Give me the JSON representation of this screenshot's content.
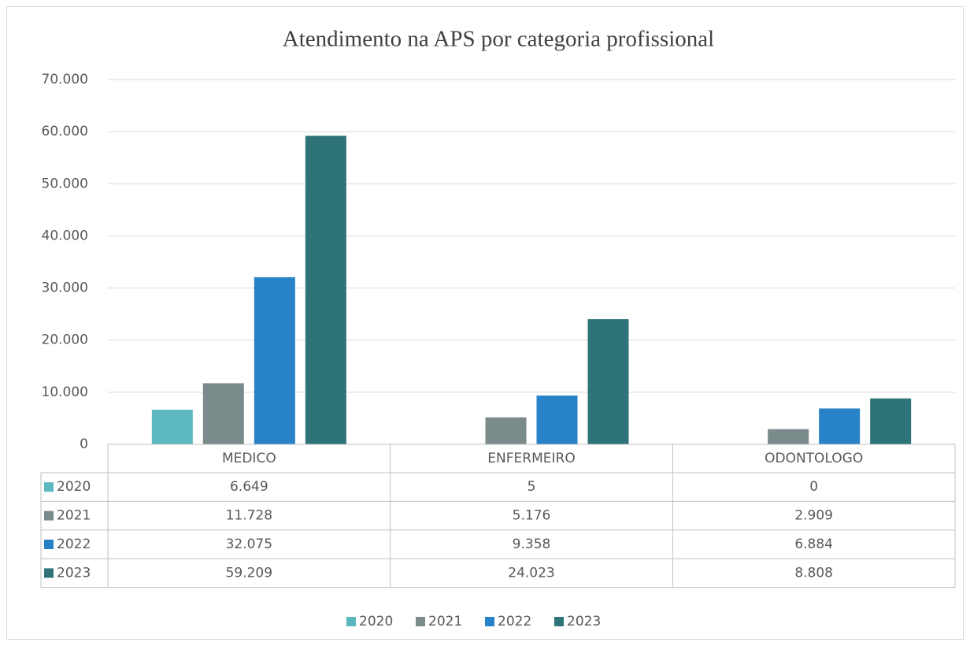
{
  "chart_data": {
    "type": "bar",
    "title": "Atendimento na APS por categoria profissional",
    "categories": [
      "MEDICO",
      "ENFERMEIRO",
      "ODONTOLOGO"
    ],
    "series": [
      {
        "name": "2020",
        "color": "#5bb8c1",
        "values": [
          6649,
          5,
          0
        ],
        "value_labels": [
          "6.649",
          "5",
          "0"
        ]
      },
      {
        "name": "2021",
        "color": "#7b8a8b",
        "values": [
          11728,
          5176,
          2909
        ],
        "value_labels": [
          "11.728",
          "5.176",
          "2.909"
        ]
      },
      {
        "name": "2022",
        "color": "#2882c8",
        "values": [
          32075,
          9358,
          6884
        ],
        "value_labels": [
          "32.075",
          "9.358",
          "6.884"
        ]
      },
      {
        "name": "2023",
        "color": "#2e7378",
        "values": [
          59209,
          24023,
          8808
        ],
        "value_labels": [
          "59.209",
          "24.023",
          "8.808"
        ]
      }
    ],
    "ylim": [
      0,
      70000
    ],
    "yticks": [
      0,
      {
        "value": 10000,
        "label": "10.000"
      },
      {
        "value": 20000,
        "label": "20.000"
      },
      {
        "value": 30000,
        "label": "30.000"
      },
      {
        "value": 40000,
        "label": "40.000"
      },
      {
        "value": 50000,
        "label": "50.000"
      },
      {
        "value": 60000,
        "label": "60.000"
      },
      {
        "value": 70000,
        "label": "70.000"
      }
    ],
    "grid": true,
    "data_table": true,
    "legend": "bottom"
  }
}
